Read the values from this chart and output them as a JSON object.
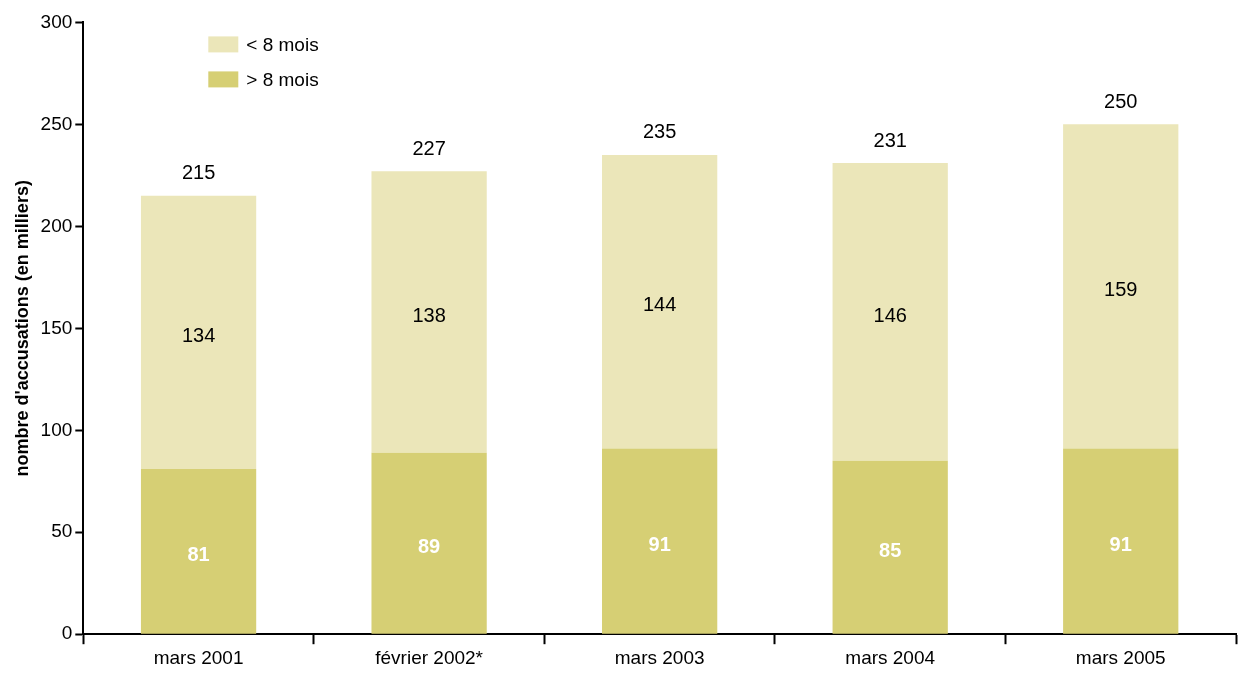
{
  "chart_data": {
    "type": "bar",
    "stacked": true,
    "ylabel": "nombre d'accusations (en milliers)",
    "categories": [
      "mars 2001",
      "février 2002*",
      "mars 2003",
      "mars 2004",
      "mars 2005"
    ],
    "series": [
      {
        "name": "> 8 mois",
        "color": "#d6cf74",
        "values": [
          81,
          89,
          91,
          85,
          91
        ]
      },
      {
        "name": "< 8 mois",
        "color": "#ebe6b9",
        "values": [
          134,
          138,
          144,
          146,
          159
        ]
      }
    ],
    "totals": [
      "215",
      "227",
      "235",
      "231",
      "250"
    ],
    "data_labels": true,
    "legend": "top left",
    "grid": false,
    "ylim": [
      0,
      300
    ],
    "yticks": [
      0,
      50,
      100,
      150,
      200,
      250,
      300
    ]
  }
}
